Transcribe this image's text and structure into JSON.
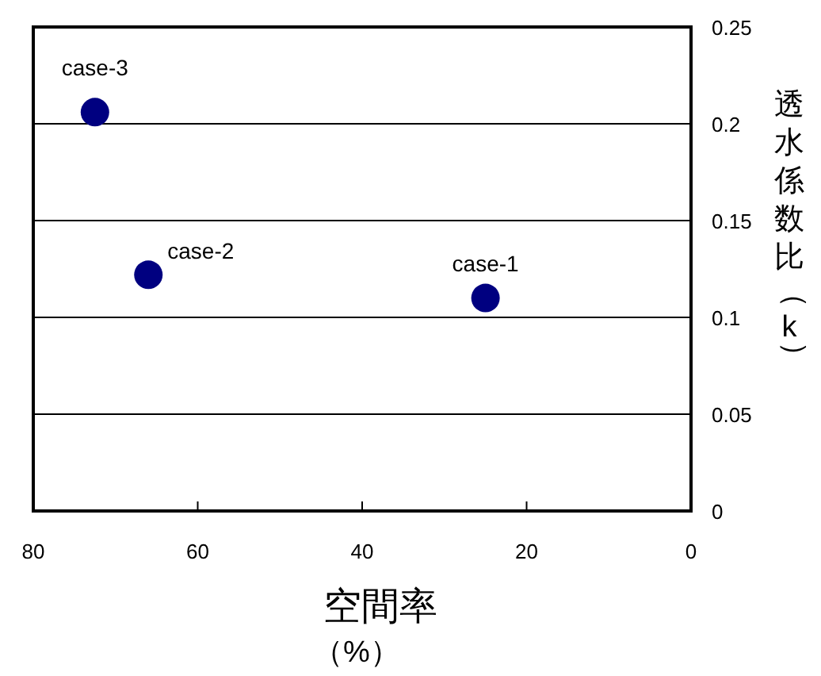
{
  "chart_data": {
    "type": "scatter",
    "xlabel": "空間率（%）",
    "ylabel": "透水係数比（k）",
    "x": [
      25,
      66,
      72.5
    ],
    "series": [
      {
        "color": "#000080",
        "values": [
          0.11,
          0.122,
          0.206
        ]
      }
    ],
    "annotations": [
      {
        "text": "case-1",
        "x": 25,
        "y": 0.11
      },
      {
        "text": "case-2",
        "x": 66,
        "y": 0.122
      },
      {
        "text": "case-3",
        "x": 72.5,
        "y": 0.206
      }
    ],
    "xlim": [
      80,
      0
    ],
    "xticks": [
      80,
      60,
      40,
      20,
      0
    ],
    "ylim": [
      0,
      0.25
    ],
    "yticks": [
      0,
      0.05,
      0.1,
      0.15,
      0.2,
      0.25
    ],
    "grid": "y",
    "marker": "circle"
  }
}
